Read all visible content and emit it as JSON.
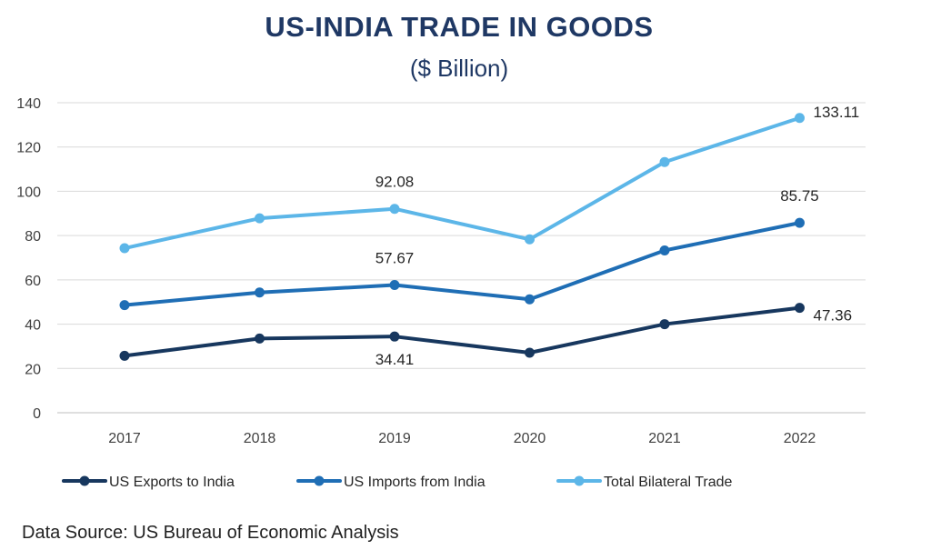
{
  "chart_data": {
    "type": "line",
    "title": "US-INDIA TRADE IN GOODS",
    "subtitle": "($ Billion)",
    "xlabel": "",
    "ylabel": "",
    "x": [
      "2017",
      "2018",
      "2019",
      "2020",
      "2021",
      "2022"
    ],
    "ylim": [
      0,
      140
    ],
    "yticks": [
      "0",
      "20",
      "40",
      "60",
      "80",
      "100",
      "120",
      "140"
    ],
    "grid": true,
    "legend_position": "bottom",
    "series": [
      {
        "name": "US Exports to India",
        "color": "#17375e",
        "values": [
          25.7,
          33.5,
          34.41,
          27.1,
          40.0,
          47.36
        ],
        "labels": [
          {
            "index": 2,
            "text": "34.41",
            "placement": "below"
          },
          {
            "index": 5,
            "text": "47.36",
            "placement": "right"
          }
        ]
      },
      {
        "name": "US Imports from India",
        "color": "#1f6eb5",
        "values": [
          48.6,
          54.3,
          57.67,
          51.2,
          73.3,
          85.75
        ],
        "labels": [
          {
            "index": 2,
            "text": "57.67",
            "placement": "above"
          },
          {
            "index": 5,
            "text": "85.75",
            "placement": "above"
          }
        ]
      },
      {
        "name": "Total Bilateral Trade",
        "color": "#5cb6e8",
        "values": [
          74.3,
          87.8,
          92.08,
          78.3,
          113.2,
          133.11
        ],
        "labels": [
          {
            "index": 2,
            "text": "92.08",
            "placement": "above"
          },
          {
            "index": 5,
            "text": "133.11",
            "placement": "right"
          }
        ]
      }
    ]
  },
  "footer": {
    "source": "Data Source: US Bureau of Economic Analysis"
  }
}
